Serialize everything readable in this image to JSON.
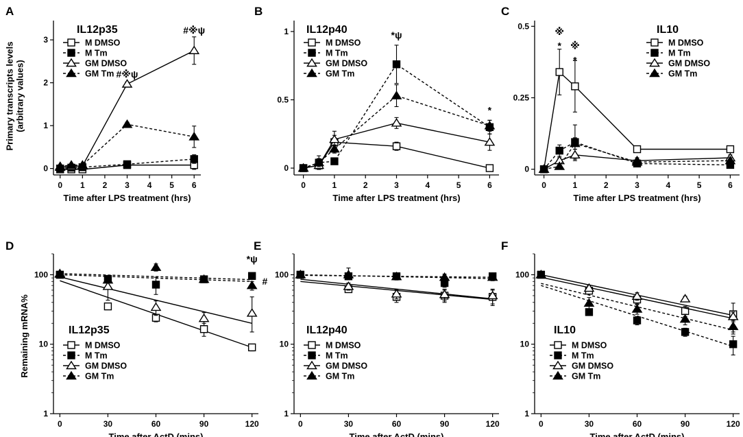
{
  "figure": {
    "legend_labels": [
      "M DMSO",
      "M Tm",
      "GM DMSO",
      "GM Tm"
    ],
    "colors": {
      "ink": "#000000",
      "background": "#ffffff"
    }
  },
  "chart_data": [
    {
      "panel": "A",
      "type": "line",
      "title": "IL12p35",
      "xlabel": "Time after LPS treatment (hrs)",
      "ylabel": [
        "Primary transcripts levels",
        "(arbitrary values)"
      ],
      "xscale": "linear",
      "yscale": "linear",
      "xlim": [
        -0.3,
        6.3
      ],
      "ylim": [
        -0.15,
        3.45
      ],
      "x_ticks": [
        0,
        1,
        2,
        3,
        4,
        5,
        6
      ],
      "x_tick_labels": [
        "0",
        "1",
        "2",
        "3",
        "4",
        "5",
        "6"
      ],
      "y_ticks": [
        0,
        1,
        2,
        3
      ],
      "y_tick_labels": [
        "0",
        "1",
        "2",
        "3"
      ],
      "legend_position": "top-left",
      "series": [
        {
          "name": "M DMSO",
          "marker": "open-square",
          "dash": "solid",
          "connect": "points",
          "x": [
            0,
            0.5,
            1,
            3,
            6
          ],
          "y": [
            -0.02,
            -0.02,
            -0.02,
            0.08,
            0.08
          ],
          "err": [
            0.03,
            0.03,
            0.03,
            0.03,
            0.1
          ]
        },
        {
          "name": "M Tm",
          "marker": "filled-square",
          "dash": "dashed",
          "connect": "points",
          "x": [
            0,
            0.5,
            1,
            3,
            6
          ],
          "y": [
            0,
            0.02,
            0.03,
            0.1,
            0.22
          ],
          "err": [
            0.03,
            0.03,
            0.03,
            0.05,
            0.1
          ]
        },
        {
          "name": "GM DMSO",
          "marker": "open-triangle",
          "dash": "solid",
          "connect": "points",
          "x": [
            0,
            0.5,
            1,
            3,
            6
          ],
          "y": [
            0.03,
            0.05,
            0.06,
            1.97,
            2.75
          ],
          "err": [
            0.03,
            0.03,
            0.03,
            0.05,
            0.32
          ]
        },
        {
          "name": "GM Tm",
          "marker": "filled-triangle",
          "dash": "dashed",
          "connect": "points",
          "x": [
            0,
            0.5,
            1,
            3,
            6
          ],
          "y": [
            0.05,
            0.08,
            0.08,
            1.03,
            0.74
          ],
          "err": [
            0.03,
            0.03,
            0.03,
            0.05,
            0.25
          ]
        }
      ],
      "annotations": [
        {
          "text": "#※ψ",
          "x": 3,
          "y": 2.12
        },
        {
          "text": "#※ψ",
          "x": 6,
          "y": 3.15
        }
      ]
    },
    {
      "panel": "B",
      "type": "line",
      "title": "IL12p40",
      "xlabel": "Time after LPS treatment (hrs)",
      "ylabel": [],
      "xscale": "linear",
      "yscale": "linear",
      "xlim": [
        -0.3,
        6.3
      ],
      "ylim": [
        -0.05,
        1.08
      ],
      "x_ticks": [
        0,
        1,
        2,
        3,
        4,
        5,
        6
      ],
      "x_tick_labels": [
        "0",
        "1",
        "2",
        "3",
        "4",
        "5",
        "6"
      ],
      "y_ticks": [
        0,
        0.5,
        1
      ],
      "y_tick_labels": [
        "0",
        "0.5",
        "1"
      ],
      "legend_position": "top-left",
      "series": [
        {
          "name": "M DMSO",
          "marker": "open-square",
          "dash": "solid",
          "connect": "points",
          "x": [
            0,
            0.5,
            1,
            3,
            6
          ],
          "y": [
            0,
            0.02,
            0.19,
            0.16,
            0
          ],
          "err": [
            0.01,
            0.01,
            0.05,
            0.03,
            0.01
          ]
        },
        {
          "name": "M Tm",
          "marker": "filled-square",
          "dash": "dashed",
          "connect": "points",
          "x": [
            0,
            0.5,
            1,
            3,
            6
          ],
          "y": [
            0,
            0.04,
            0.05,
            0.76,
            0.3
          ],
          "err": [
            0.01,
            0.05,
            0.02,
            0.14,
            0.05
          ]
        },
        {
          "name": "GM DMSO",
          "marker": "open-triangle",
          "dash": "solid",
          "connect": "points",
          "x": [
            0,
            0.5,
            1,
            3,
            6
          ],
          "y": [
            0,
            0.02,
            0.21,
            0.33,
            0.19
          ],
          "err": [
            0.01,
            0.01,
            0.06,
            0.04,
            0.06
          ]
        },
        {
          "name": "GM Tm",
          "marker": "filled-triangle",
          "dash": "dashed",
          "connect": "points",
          "x": [
            0,
            0.5,
            1,
            3,
            6
          ],
          "y": [
            0,
            0.04,
            0.14,
            0.53,
            0.31
          ],
          "err": [
            0.01,
            0.03,
            0.03,
            0.08,
            0.04
          ]
        }
      ],
      "annotations": [
        {
          "text": "*ψ",
          "x": 3,
          "y": 0.95
        },
        {
          "text": "*",
          "x": 6,
          "y": 0.4
        }
      ]
    },
    {
      "panel": "C",
      "type": "line",
      "title": "IL10",
      "xlabel": "Time after LPS treatment (hrs)",
      "ylabel": [],
      "xscale": "linear",
      "yscale": "linear",
      "xlim": [
        -0.3,
        6.3
      ],
      "ylim": [
        -0.02,
        0.52
      ],
      "x_ticks": [
        0,
        1,
        2,
        3,
        4,
        5,
        6
      ],
      "x_tick_labels": [
        "0",
        "1",
        "2",
        "3",
        "4",
        "5",
        "6"
      ],
      "y_ticks": [
        0,
        0.25,
        0.5
      ],
      "y_tick_labels": [
        "0",
        "0.25",
        "0.5"
      ],
      "legend_position": "top-right",
      "series": [
        {
          "name": "M DMSO",
          "marker": "open-square",
          "dash": "solid",
          "connect": "points",
          "x": [
            0,
            0.5,
            1,
            3,
            6
          ],
          "y": [
            0,
            0.34,
            0.29,
            0.07,
            0.07
          ],
          "err": [
            0.005,
            0.08,
            0.09,
            0.01,
            0.01
          ]
        },
        {
          "name": "M Tm",
          "marker": "filled-square",
          "dash": "dashed",
          "connect": "points",
          "x": [
            0,
            0.5,
            1,
            3,
            6
          ],
          "y": [
            0,
            0.065,
            0.095,
            0.02,
            0.015
          ],
          "err": [
            0.005,
            0.02,
            0.06,
            0.01,
            0.01
          ]
        },
        {
          "name": "GM DMSO",
          "marker": "open-triangle",
          "dash": "solid",
          "connect": "points",
          "x": [
            0,
            0.5,
            1,
            3,
            6
          ],
          "y": [
            0,
            0.03,
            0.05,
            0.03,
            0.04
          ],
          "err": [
            0.005,
            0.01,
            0.02,
            0.01,
            0.01
          ]
        },
        {
          "name": "GM Tm",
          "marker": "filled-triangle",
          "dash": "dashed",
          "connect": "points",
          "x": [
            0,
            0.5,
            1,
            3,
            6
          ],
          "y": [
            0,
            0.01,
            0.09,
            0.025,
            0.03
          ],
          "err": [
            0.005,
            0.01,
            0.02,
            0.01,
            0.01
          ]
        }
      ],
      "annotations": [
        {
          "text": "※",
          "x": 0.5,
          "y": 0.47
        },
        {
          "text": "*",
          "x": 0.5,
          "y": 0.42
        },
        {
          "text": "※",
          "x": 1,
          "y": 0.42
        },
        {
          "text": "*",
          "x": 1,
          "y": 0.37
        }
      ]
    },
    {
      "panel": "D",
      "type": "scatter",
      "title": "IL12p35",
      "xlabel": "Time after ActD (mins)",
      "ylabel": [
        "Remaining mRNA%"
      ],
      "xscale": "linear",
      "yscale": "log",
      "xlim": [
        -4,
        124
      ],
      "ylim": [
        1,
        200
      ],
      "x_ticks": [
        0,
        30,
        60,
        90,
        120
      ],
      "x_tick_labels": [
        "0",
        "30",
        "60",
        "90",
        "120"
      ],
      "y_ticks": [
        1,
        10,
        100
      ],
      "y_tick_labels": [
        "1",
        "10",
        "100"
      ],
      "legend_position": "bottom-left",
      "series": [
        {
          "name": "M DMSO",
          "marker": "open-square",
          "dash": "solid",
          "connect": "fit",
          "x": [
            0,
            30,
            60,
            90,
            120
          ],
          "y": [
            100,
            35,
            24,
            16.5,
            9
          ],
          "err_up": [
            1,
            3,
            3,
            3.5,
            1
          ],
          "err_down": [
            1,
            3,
            3,
            3.5,
            1
          ],
          "fit": [
            82,
            9
          ]
        },
        {
          "name": "M Tm",
          "marker": "filled-square",
          "dash": "dashed",
          "connect": "fit",
          "x": [
            0,
            30,
            60,
            90,
            120
          ],
          "y": [
            100,
            87,
            72,
            86,
            96
          ],
          "err_up": [
            2,
            5,
            20,
            5,
            5
          ],
          "err_down": [
            2,
            5,
            20,
            5,
            5
          ],
          "fit": [
            100,
            80
          ]
        },
        {
          "name": "GM DMSO",
          "marker": "open-triangle",
          "dash": "solid",
          "connect": "fit",
          "x": [
            0,
            30,
            60,
            90,
            120
          ],
          "y": [
            102,
            68,
            34,
            23.5,
            28
          ],
          "err_up": [
            2,
            25,
            8,
            5,
            20
          ],
          "err_down": [
            2,
            25,
            8,
            5,
            13
          ],
          "fit": [
            93,
            20
          ]
        },
        {
          "name": "GM Tm",
          "marker": "filled-triangle",
          "dash": "dashed",
          "connect": "fit",
          "x": [
            0,
            30,
            60,
            90,
            120
          ],
          "y": [
            104,
            84,
            128,
            86,
            70
          ],
          "err_up": [
            2,
            5,
            15,
            5,
            10
          ],
          "err_down": [
            2,
            5,
            15,
            5,
            10
          ],
          "fit": [
            104,
            85
          ]
        }
      ],
      "annotations": [
        {
          "text": "*ψ",
          "x": 120,
          "y": 150
        },
        {
          "text": "#",
          "x": 128,
          "y": 72
        }
      ]
    },
    {
      "panel": "E",
      "type": "scatter",
      "title": "IL12p40",
      "xlabel": "Time after ActD (mins)",
      "ylabel": [],
      "xscale": "linear",
      "yscale": "log",
      "xlim": [
        -4,
        124
      ],
      "ylim": [
        1,
        200
      ],
      "x_ticks": [
        0,
        30,
        60,
        90,
        120
      ],
      "x_tick_labels": [
        "0",
        "30",
        "60",
        "90",
        "120"
      ],
      "y_ticks": [
        1,
        10,
        100
      ],
      "y_tick_labels": [
        "1",
        "10",
        "100"
      ],
      "legend_position": "bottom-left",
      "series": [
        {
          "name": "M DMSO",
          "marker": "open-square",
          "dash": "solid",
          "connect": "fit",
          "x": [
            0,
            30,
            60,
            90,
            120
          ],
          "y": [
            100,
            62,
            48,
            50,
            48
          ],
          "err_up": [
            3,
            5,
            8,
            10,
            12
          ],
          "err_down": [
            3,
            5,
            8,
            10,
            12
          ],
          "fit": [
            80,
            44
          ]
        },
        {
          "name": "M Tm",
          "marker": "filled-square",
          "dash": "dashed",
          "connect": "fit",
          "x": [
            0,
            30,
            60,
            90,
            120
          ],
          "y": [
            100,
            95,
            95,
            76,
            95
          ],
          "err_up": [
            3,
            10,
            10,
            10,
            10
          ],
          "err_down": [
            3,
            10,
            10,
            10,
            10
          ],
          "fit": [
            98,
            92
          ]
        },
        {
          "name": "GM DMSO",
          "marker": "open-triangle",
          "dash": "solid",
          "connect": "fit",
          "x": [
            0,
            30,
            60,
            90,
            120
          ],
          "y": [
            100,
            68,
            53,
            52,
            50
          ],
          "err_up": [
            3,
            8,
            8,
            10,
            12
          ],
          "err_down": [
            3,
            8,
            8,
            10,
            12
          ],
          "fit": [
            86,
            45
          ]
        },
        {
          "name": "GM Tm",
          "marker": "filled-triangle",
          "dash": "dashed",
          "connect": "fit",
          "x": [
            0,
            30,
            60,
            90,
            120
          ],
          "y": [
            100,
            100,
            94,
            92,
            92
          ],
          "err_up": [
            3,
            25,
            10,
            10,
            10
          ],
          "err_down": [
            3,
            15,
            10,
            10,
            10
          ],
          "fit": [
            100,
            88
          ]
        }
      ],
      "annotations": []
    },
    {
      "panel": "F",
      "type": "scatter",
      "title": "IL10",
      "xlabel": "Time after ActD (mins)",
      "ylabel": [],
      "xscale": "linear",
      "yscale": "log",
      "xlim": [
        -4,
        124
      ],
      "ylim": [
        1,
        200
      ],
      "x_ticks": [
        0,
        30,
        60,
        90,
        120
      ],
      "x_tick_labels": [
        "0",
        "30",
        "60",
        "90",
        "120"
      ],
      "y_ticks": [
        1,
        10,
        100
      ],
      "y_tick_labels": [
        "1",
        "10",
        "100"
      ],
      "legend_position": "bottom-left",
      "series": [
        {
          "name": "M DMSO",
          "marker": "open-square",
          "dash": "solid",
          "connect": "fit",
          "x": [
            0,
            30,
            60,
            90,
            120
          ],
          "y": [
            100,
            59,
            44,
            30,
            27
          ],
          "err_up": [
            3,
            5,
            6,
            5,
            12
          ],
          "err_down": [
            3,
            5,
            6,
            5,
            12
          ],
          "fit": [
            100,
            26
          ]
        },
        {
          "name": "M Tm",
          "marker": "filled-square",
          "dash": "dashed",
          "connect": "fit",
          "x": [
            0,
            30,
            60,
            90,
            120
          ],
          "y": [
            100,
            29,
            22,
            15,
            10
          ],
          "err_up": [
            3,
            3,
            3,
            2,
            3
          ],
          "err_down": [
            3,
            3,
            3,
            2,
            3
          ],
          "fit": [
            70,
            9.3
          ]
        },
        {
          "name": "GM DMSO",
          "marker": "open-triangle",
          "dash": "solid",
          "connect": "fit",
          "x": [
            0,
            30,
            60,
            90,
            120
          ],
          "y": [
            100,
            64,
            49,
            45,
            25
          ],
          "err_up": [
            3,
            6,
            6,
            4,
            4
          ],
          "err_down": [
            3,
            6,
            6,
            4,
            4
          ],
          "fit": [
            92,
            23.5
          ]
        },
        {
          "name": "GM Tm",
          "marker": "filled-triangle",
          "dash": "dashed",
          "connect": "fit",
          "x": [
            0,
            30,
            60,
            90,
            120
          ],
          "y": [
            100,
            39,
            32,
            23,
            18
          ],
          "err_up": [
            3,
            8,
            5,
            4,
            4
          ],
          "err_down": [
            3,
            8,
            5,
            4,
            4
          ],
          "fit": [
            75,
            16
          ]
        }
      ],
      "annotations": []
    }
  ]
}
